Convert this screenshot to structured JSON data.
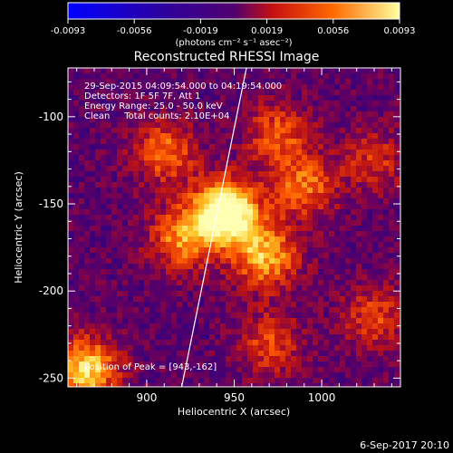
{
  "chart_data": {
    "type": "heatmap",
    "title": "Reconstructed RHESSI Image",
    "xlabel": "Heliocentric X (arcsec)",
    "ylabel": "Heliocentric Y (arcsec)",
    "xlim": [
      855,
      1045
    ],
    "ylim": [
      -255,
      -72
    ],
    "xticks": [
      900,
      950,
      1000
    ],
    "yticks": [
      -100,
      -150,
      -200,
      -250
    ],
    "colorbar": {
      "min": -0.0093,
      "max": 0.0093,
      "tick_labels": [
        "-0.0093",
        "-0.0056",
        "-0.0019",
        "0.0019",
        "0.0056",
        "0.0093"
      ],
      "unit_label": "(photons cm⁻² s⁻¹ asec⁻²)",
      "colors": [
        "#0000ff",
        "#300090",
        "#500070",
        "#d01010",
        "#ff6000",
        "#ffff80"
      ]
    },
    "annotations": [
      "29-Sep-2015 04:09:54.000 to 04:19:54.000",
      "Detectors: 1F 5F 7F, Att 1",
      "Energy Range: 25.0 - 50.0 keV",
      "Clean     Total counts: 2.10E+04"
    ],
    "peak_label": "Position of Peak = [943,-162]",
    "peak": {
      "x": 943,
      "y": -162
    },
    "limb_line": [
      [
        920,
        -255
      ],
      [
        957,
        -72
      ]
    ],
    "sources": [
      {
        "x": 945,
        "y": -155,
        "intensity": 1.0
      },
      {
        "x": 968,
        "y": -180,
        "intensity": 0.6
      },
      {
        "x": 920,
        "y": -170,
        "intensity": 0.5
      },
      {
        "x": 910,
        "y": -120,
        "intensity": 0.45
      },
      {
        "x": 975,
        "y": -110,
        "intensity": 0.4
      },
      {
        "x": 990,
        "y": -140,
        "intensity": 0.45
      },
      {
        "x": 970,
        "y": -230,
        "intensity": 0.35
      },
      {
        "x": 1030,
        "y": -215,
        "intensity": 0.35
      },
      {
        "x": 865,
        "y": -245,
        "intensity": 0.7
      },
      {
        "x": 1030,
        "y": -125,
        "intensity": 0.3
      }
    ]
  },
  "footer": {
    "date": "6-Sep-2017 20:10"
  }
}
